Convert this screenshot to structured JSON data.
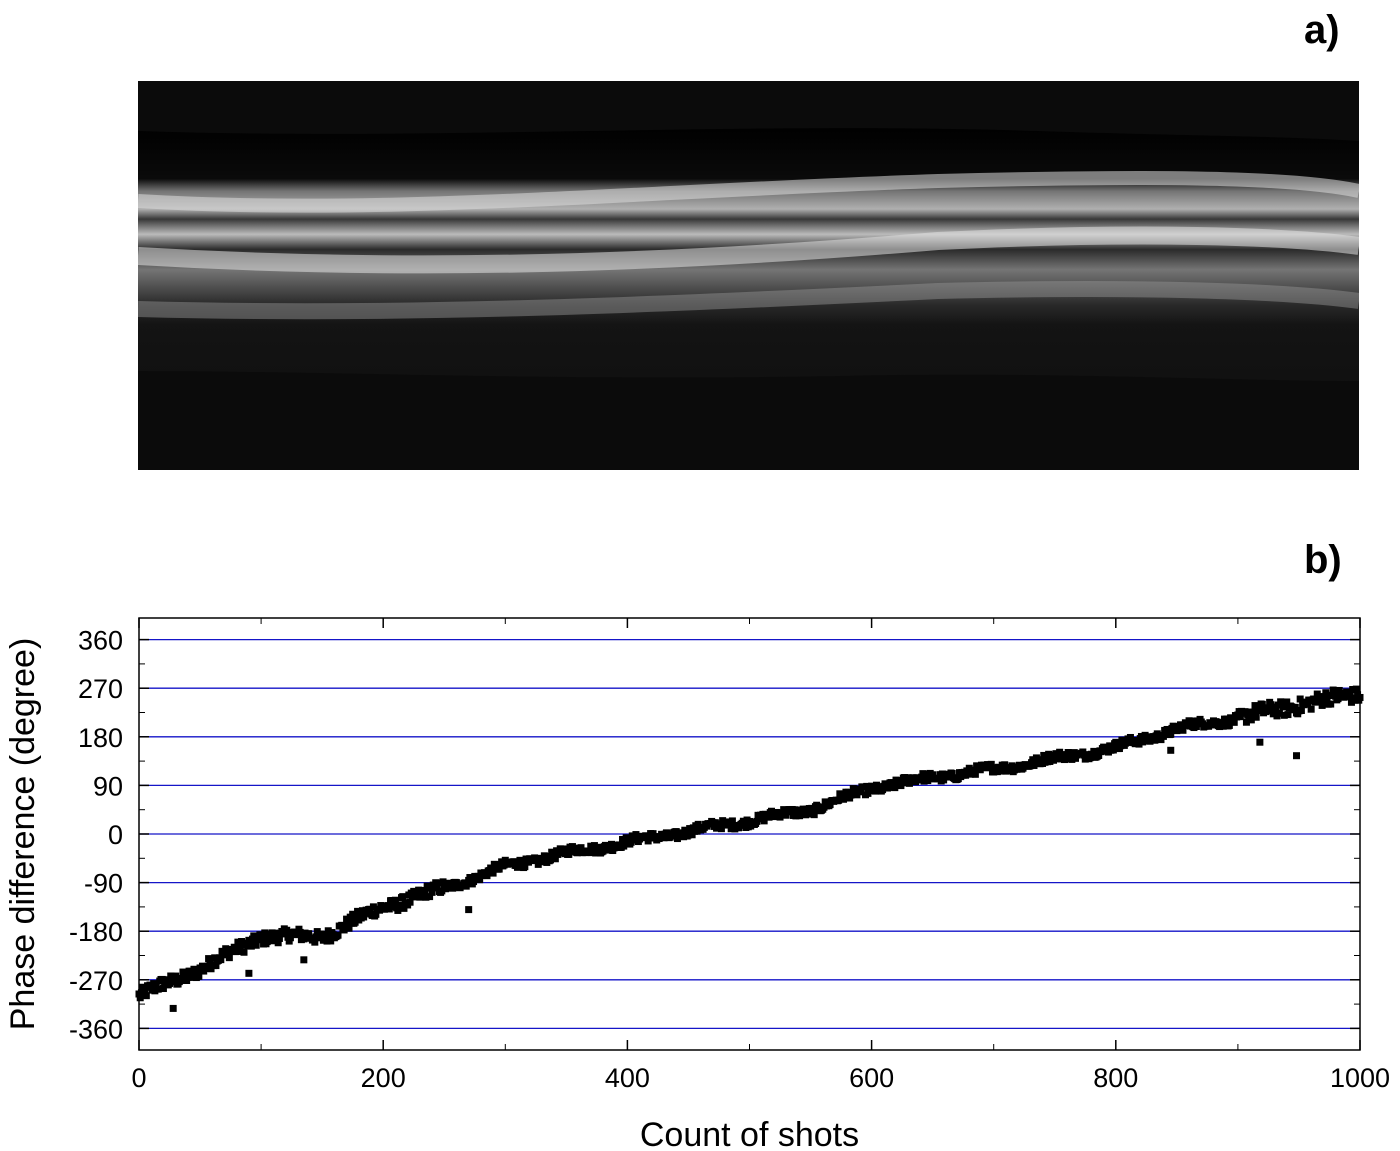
{
  "panels": {
    "a_label": "a)",
    "b_label": "b)"
  },
  "colors": {
    "gridline": "#1515c8",
    "marker": "#000000",
    "fringe_bright": "#d8d8d8",
    "background": "#050505"
  },
  "fringe_image": {
    "description_key": "interference-fringe-image",
    "band_centers_norm": [
      0.3,
      0.45
    ],
    "band_drift_norm": -0.09
  },
  "chart_data": {
    "type": "scatter",
    "title": "",
    "xlabel": "Count of shots",
    "ylabel": "Phase difference (degree)",
    "xlim": [
      0,
      1000
    ],
    "ylim": [
      -400,
      400
    ],
    "xticks": [
      "0",
      "200",
      "400",
      "600",
      "800",
      "1000"
    ],
    "yticks": [
      "360",
      "270",
      "180",
      "90",
      "0",
      "-90",
      "-180",
      "-270",
      "-360"
    ],
    "grid": "horizontal at y ticks",
    "marker": "square",
    "trend_x": [
      0,
      50,
      100,
      150,
      200,
      250,
      300,
      350,
      400,
      450,
      500,
      550,
      600,
      650,
      700,
      750,
      800,
      850,
      900,
      950,
      1000
    ],
    "trend_y": [
      -300,
      -250,
      -190,
      -190,
      -135,
      -100,
      -60,
      -35,
      -15,
      5,
      25,
      45,
      85,
      105,
      120,
      140,
      160,
      195,
      215,
      240,
      260
    ],
    "outliers": [
      {
        "x": 28,
        "y": -323
      },
      {
        "x": 90,
        "y": -258
      },
      {
        "x": 135,
        "y": -233
      },
      {
        "x": 270,
        "y": -140
      },
      {
        "x": 845,
        "y": 155
      },
      {
        "x": 918,
        "y": 170
      },
      {
        "x": 948,
        "y": 145
      }
    ]
  }
}
